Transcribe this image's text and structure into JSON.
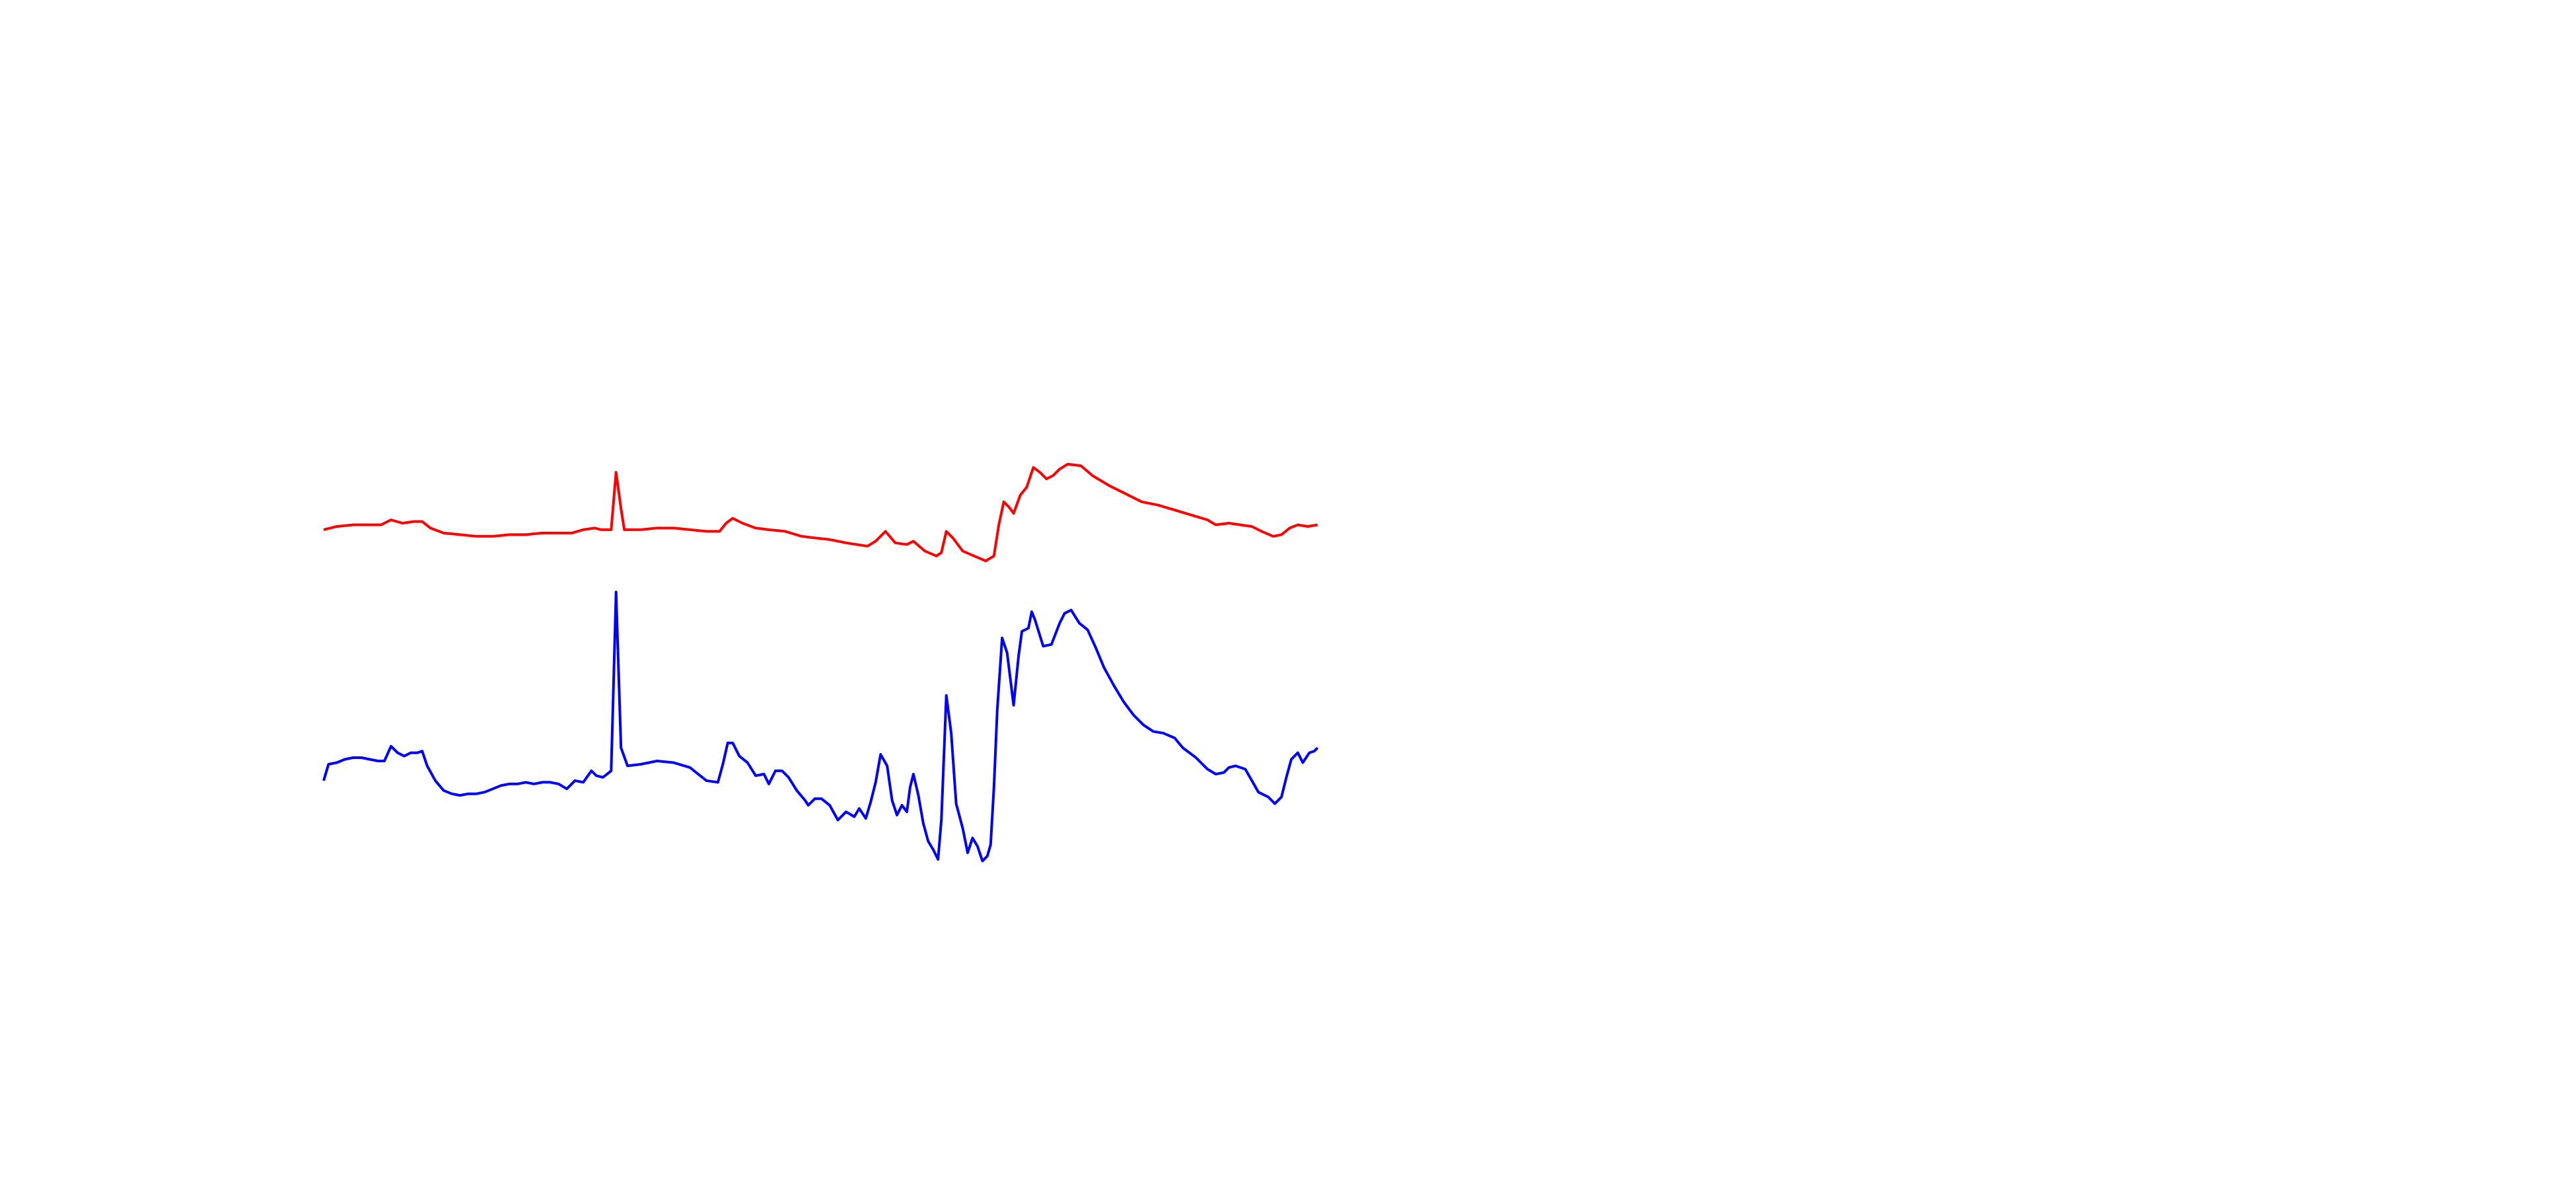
{
  "chart_data": {
    "type": "line",
    "xlim": [
      0,
      1568
    ],
    "ylim": [
      725,
      0
    ],
    "series": [
      {
        "color": "#ff0000",
        "x": [
          197,
          205,
          215,
          225,
          232,
          238,
          245,
          252,
          257,
          262,
          270,
          280,
          290,
          300,
          310,
          320,
          330,
          340,
          348,
          355,
          362,
          366,
          372,
          375,
          378,
          380,
          390,
          400,
          410,
          420,
          430,
          438,
          442,
          446,
          452,
          460,
          468,
          478,
          488,
          496,
          505,
          515,
          528,
          533,
          539,
          545,
          552,
          556,
          563,
          570,
          573,
          576,
          580,
          586,
          593,
          600,
          605,
          608,
          611,
          614,
          617,
          621,
          625,
          629,
          633,
          637,
          641,
          645,
          650,
          658,
          665,
          675,
          685,
          695,
          705,
          715,
          725,
          735,
          740,
          748,
          755,
          762,
          768,
          775,
          780,
          785,
          790,
          796,
          802
        ],
        "values": [
          323,
          321,
          320,
          320,
          320,
          317,
          319,
          318,
          318,
          322,
          325,
          326,
          327,
          327,
          326,
          326,
          325,
          325,
          325,
          323,
          322,
          323,
          323,
          288,
          310,
          323,
          323,
          322,
          322,
          323,
          324,
          324,
          319,
          316,
          319,
          322,
          323,
          324,
          327,
          328,
          329,
          331,
          333,
          330,
          324,
          331,
          332,
          330,
          336,
          339,
          337,
          324,
          328,
          336,
          339,
          342,
          339,
          320,
          306,
          309,
          313,
          302,
          297,
          285,
          288,
          292,
          290,
          286,
          283,
          284,
          290,
          296,
          301,
          306,
          308,
          311,
          314,
          317,
          320,
          319,
          320,
          321,
          324,
          327,
          326,
          322,
          320,
          321,
          320
        ]
      },
      {
        "color": "#0000ff",
        "x": [
          197,
          200,
          205,
          210,
          215,
          220,
          225,
          230,
          234,
          238,
          242,
          246,
          250,
          254,
          257,
          260,
          265,
          270,
          275,
          280,
          285,
          290,
          295,
          300,
          305,
          310,
          315,
          320,
          325,
          330,
          335,
          340,
          345,
          350,
          355,
          360,
          363,
          367,
          372,
          375,
          378,
          382,
          390,
          400,
          410,
          420,
          425,
          430,
          437,
          440,
          443,
          446,
          450,
          455,
          460,
          465,
          468,
          472,
          476,
          480,
          485,
          490,
          492,
          496,
          500,
          505,
          510,
          515,
          520,
          523,
          527,
          530,
          533,
          536,
          540,
          543,
          546,
          549,
          552,
          554,
          556,
          559,
          562,
          565,
          568,
          571,
          573,
          576,
          579,
          582,
          586,
          589,
          592,
          595,
          598,
          601,
          603,
          605,
          607,
          610,
          613,
          617,
          620,
          622,
          626,
          628,
          630,
          635,
          640,
          645,
          648,
          652,
          657,
          662,
          667,
          672,
          678,
          684,
          690,
          696,
          702,
          708,
          715,
          720,
          728,
          735,
          740,
          745,
          748,
          752,
          758,
          762,
          766,
          772,
          776,
          780,
          783,
          786,
          790,
          793,
          797,
          800,
          802
        ],
        "values": [
          476,
          466,
          465,
          463,
          462,
          462,
          463,
          464,
          464,
          455,
          459,
          461,
          459,
          459,
          458,
          467,
          476,
          482,
          484,
          485,
          484,
          484,
          483,
          481,
          479,
          478,
          478,
          477,
          478,
          477,
          477,
          478,
          481,
          476,
          477,
          470,
          473,
          474,
          470,
          361,
          456,
          467,
          466,
          464,
          465,
          468,
          472,
          476,
          477,
          466,
          453,
          453,
          461,
          465,
          473,
          472,
          478,
          470,
          470,
          474,
          482,
          488,
          491,
          487,
          487,
          491,
          500,
          495,
          498,
          493,
          499,
          489,
          477,
          460,
          467,
          488,
          497,
          491,
          495,
          480,
          472,
          485,
          502,
          513,
          518,
          524,
          500,
          424,
          447,
          490,
          505,
          520,
          511,
          516,
          525,
          522,
          515,
          480,
          433,
          389,
          398,
          430,
          400,
          385,
          383,
          373,
          378,
          394,
          393,
          380,
          374,
          372,
          380,
          384,
          395,
          407,
          418,
          428,
          436,
          442,
          446,
          447,
          450,
          456,
          462,
          469,
          472,
          471,
          468,
          467,
          469,
          476,
          483,
          486,
          490,
          486,
          474,
          463,
          459,
          465,
          459,
          458,
          456
        ]
      }
    ]
  }
}
